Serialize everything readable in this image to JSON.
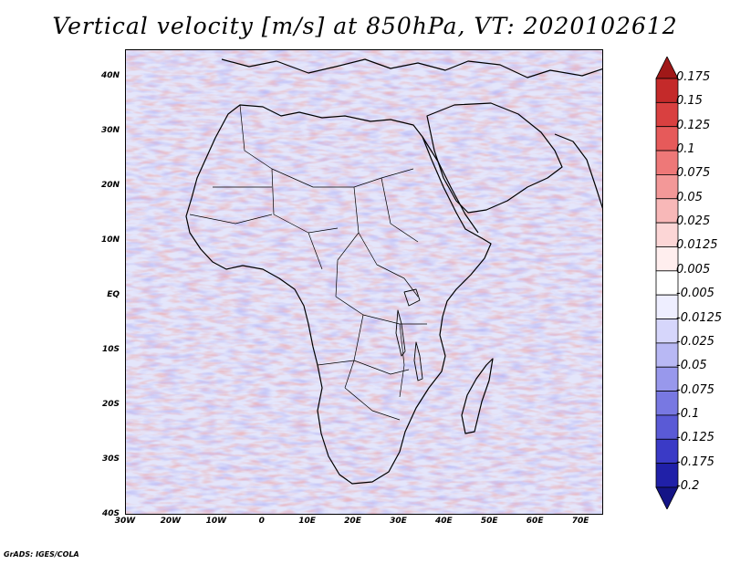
{
  "title": "Vertical velocity [m/s] at 850hPa, VT: 2020102612",
  "map": {
    "lat_min": -40,
    "lat_max": 45,
    "lon_min": -30,
    "lon_max": 75,
    "lat_ticks": [
      "40N",
      "30N",
      "20N",
      "10N",
      "EQ",
      "10S",
      "20S",
      "30S",
      "40S"
    ],
    "lat_values": [
      40,
      30,
      20,
      10,
      0,
      -10,
      -20,
      -30,
      -40
    ],
    "lon_ticks": [
      "30W",
      "20W",
      "10W",
      "0",
      "10E",
      "20E",
      "30E",
      "40E",
      "50E",
      "60E",
      "70E"
    ],
    "lon_values": [
      -30,
      -20,
      -10,
      0,
      10,
      20,
      30,
      40,
      50,
      60,
      70
    ]
  },
  "colorbar": {
    "labels": [
      "0.175",
      "0.15",
      "0.125",
      "0.1",
      "0.075",
      "0.05",
      "0.025",
      "0.0125",
      "0.005",
      "-0.005",
      "-0.0125",
      "-0.025",
      "-0.05",
      "-0.075",
      "-0.1",
      "-0.125",
      "-0.175",
      "-0.2"
    ],
    "colors": [
      "#a01818",
      "#c42a2a",
      "#d94040",
      "#e65a5a",
      "#ee7878",
      "#f39898",
      "#f8b8b8",
      "#fcd6d6",
      "#ffeeee",
      "#ffffff",
      "#eeeeff",
      "#d6d6fb",
      "#b8b8f4",
      "#9898ec",
      "#7878e2",
      "#5a5ad6",
      "#3a3ac6",
      "#2020a8",
      "#141486"
    ]
  },
  "credit": "GrADS: IGES/COLA"
}
